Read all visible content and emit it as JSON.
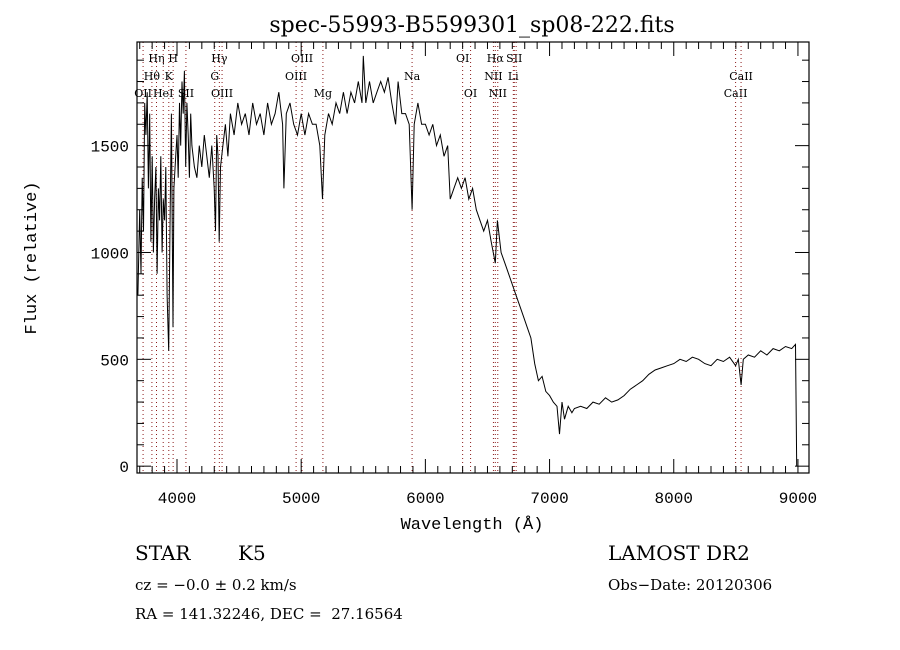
{
  "chart_data": {
    "type": "line",
    "title": "spec-55993-B5599301_sp08-222.fits",
    "xlabel": "Wavelength (Å)",
    "ylabel": "Flux (relative)",
    "xlim": [
      3678,
      9089
    ],
    "ylim": [
      -32,
      1985
    ],
    "xticks": [
      4000,
      5000,
      6000,
      7000,
      8000,
      9000
    ],
    "yticks": [
      0,
      500,
      1000,
      1500
    ],
    "grid": false,
    "line_color": "#000000",
    "marker_color": "#8b1a1a",
    "lines": [
      {
        "label": "OII",
        "wave": 3727,
        "row": 3
      },
      {
        "label": "Hθ",
        "wave": 3798,
        "row": 2
      },
      {
        "label": "Hη",
        "wave": 3835,
        "row": 1
      },
      {
        "label": "HeI",
        "wave": 3889,
        "row": 3
      },
      {
        "label": "K",
        "wave": 3934,
        "row": 2
      },
      {
        "label": "H",
        "wave": 3969,
        "row": 1
      },
      {
        "label": "SII",
        "wave": 4072,
        "row": 3
      },
      {
        "label": "G",
        "wave": 4304,
        "row": 2
      },
      {
        "label": "Hγ",
        "wave": 4341,
        "row": 1
      },
      {
        "label": "OIII",
        "wave": 4363,
        "row": 3
      },
      {
        "label": "OIII",
        "wave": 4959,
        "row": 2
      },
      {
        "label": "OIII",
        "wave": 5007,
        "row": 1
      },
      {
        "label": "Mg",
        "wave": 5175,
        "row": 3
      },
      {
        "label": "Na",
        "wave": 5893,
        "row": 2
      },
      {
        "label": "OI",
        "wave": 6300,
        "row": 1
      },
      {
        "label": "OI",
        "wave": 6364,
        "row": 3
      },
      {
        "label": "NII",
        "wave": 6548,
        "row": 2
      },
      {
        "label": "Hα",
        "wave": 6563,
        "row": 1
      },
      {
        "label": "NII",
        "wave": 6583,
        "row": 3
      },
      {
        "label": "Li",
        "wave": 6708,
        "row": 2
      },
      {
        "label": "SII",
        "wave": 6716,
        "row": 1
      },
      {
        "label": "SII",
        "wave": 6731,
        "row": 0
      },
      {
        "label": "CaII",
        "wave": 8498,
        "row": 3
      },
      {
        "label": "CaII",
        "wave": 8542,
        "row": 2
      }
    ],
    "series": [
      {
        "name": "spectrum",
        "x": [
          3685,
          3700,
          3710,
          3720,
          3730,
          3740,
          3750,
          3760,
          3770,
          3780,
          3790,
          3800,
          3810,
          3820,
          3830,
          3840,
          3850,
          3860,
          3870,
          3880,
          3890,
          3900,
          3910,
          3920,
          3933,
          3945,
          3955,
          3968,
          3975,
          3990,
          4000,
          4010,
          4020,
          4030,
          4040,
          4050,
          4060,
          4070,
          4080,
          4090,
          4100,
          4110,
          4120,
          4140,
          4160,
          4180,
          4200,
          4220,
          4240,
          4260,
          4280,
          4300,
          4310,
          4320,
          4330,
          4340,
          4350,
          4370,
          4390,
          4410,
          4430,
          4460,
          4490,
          4520,
          4550,
          4580,
          4610,
          4640,
          4670,
          4700,
          4730,
          4760,
          4790,
          4820,
          4850,
          4861,
          4880,
          4910,
          4940,
          4970,
          5000,
          5030,
          5060,
          5090,
          5120,
          5150,
          5172,
          5190,
          5220,
          5250,
          5280,
          5310,
          5340,
          5370,
          5400,
          5430,
          5460,
          5490,
          5500,
          5520,
          5550,
          5580,
          5610,
          5640,
          5670,
          5700,
          5730,
          5760,
          5780,
          5810,
          5840,
          5870,
          5893,
          5910,
          5940,
          5970,
          6000,
          6030,
          6060,
          6090,
          6120,
          6150,
          6180,
          6200,
          6230,
          6260,
          6290,
          6320,
          6350,
          6380,
          6410,
          6440,
          6470,
          6500,
          6530,
          6563,
          6580,
          6610,
          6640,
          6670,
          6700,
          6730,
          6760,
          6790,
          6820,
          6850,
          6880,
          6910,
          6940,
          6970,
          7000,
          7030,
          7060,
          7080,
          7100,
          7120,
          7150,
          7180,
          7200,
          7250,
          7300,
          7350,
          7400,
          7450,
          7500,
          7550,
          7600,
          7650,
          7700,
          7750,
          7800,
          7850,
          7900,
          7950,
          8000,
          8050,
          8100,
          8150,
          8200,
          8250,
          8300,
          8350,
          8400,
          8450,
          8498,
          8520,
          8542,
          8560,
          8600,
          8650,
          8700,
          8750,
          8800,
          8850,
          8900,
          8950,
          8980,
          8990
        ],
        "y": [
          800,
          1200,
          900,
          1350,
          1100,
          1700,
          1550,
          1750,
          1300,
          1650,
          1050,
          1450,
          1000,
          1250,
          1400,
          900,
          1300,
          1150,
          1450,
          1000,
          1250,
          1150,
          1400,
          800,
          540,
          1200,
          1650,
          650,
          1300,
          1450,
          1550,
          1350,
          1700,
          1500,
          1800,
          1650,
          1850,
          1400,
          1700,
          1550,
          1350,
          1650,
          1500,
          1400,
          1350,
          1500,
          1400,
          1550,
          1450,
          1350,
          1500,
          1300,
          1100,
          1550,
          1450,
          1050,
          1400,
          1500,
          1600,
          1450,
          1650,
          1550,
          1700,
          1600,
          1650,
          1550,
          1700,
          1600,
          1650,
          1550,
          1700,
          1600,
          1650,
          1750,
          1600,
          1300,
          1650,
          1700,
          1600,
          1550,
          1650,
          1550,
          1650,
          1600,
          1600,
          1500,
          1250,
          1550,
          1650,
          1600,
          1700,
          1650,
          1750,
          1650,
          1750,
          1700,
          1800,
          1700,
          1920,
          1700,
          1800,
          1700,
          1750,
          1800,
          1750,
          1820,
          1700,
          1600,
          1800,
          1650,
          1650,
          1600,
          1200,
          1600,
          1700,
          1600,
          1600,
          1550,
          1600,
          1500,
          1550,
          1450,
          1500,
          1250,
          1300,
          1350,
          1300,
          1350,
          1250,
          1300,
          1200,
          1150,
          1100,
          1150,
          1050,
          950,
          1150,
          1000,
          950,
          900,
          850,
          800,
          750,
          700,
          650,
          600,
          480,
          400,
          420,
          350,
          330,
          300,
          280,
          150,
          300,
          220,
          280,
          250,
          270,
          280,
          270,
          300,
          290,
          320,
          300,
          310,
          330,
          360,
          380,
          400,
          430,
          450,
          460,
          470,
          480,
          500,
          490,
          510,
          500,
          480,
          470,
          500,
          490,
          510,
          470,
          500,
          380,
          500,
          520,
          510,
          540,
          520,
          550,
          540,
          560,
          550,
          570,
          0
        ]
      }
    ]
  },
  "info": {
    "object_class": "STAR",
    "subclass": "K5",
    "survey": "LAMOST DR2",
    "cz": "cz = −0.0 ± 0.2 km/s",
    "obs_date": "Obs−Date: 20120306",
    "coords": "RA = 141.32246, DEC =  27.16564"
  }
}
